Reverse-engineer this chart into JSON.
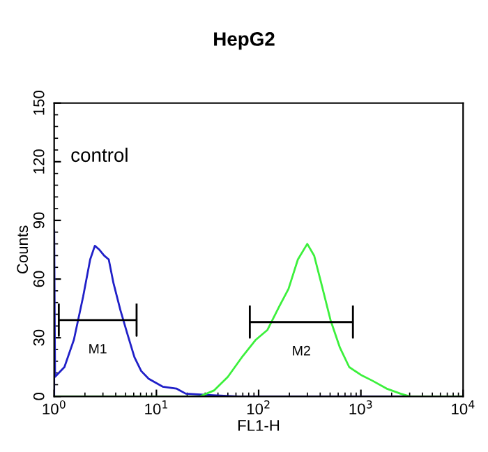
{
  "chart_data": {
    "type": "line",
    "title": "HepG2",
    "xlabel": "FL1-H",
    "ylabel": "Counts",
    "log": "x",
    "xlim": [
      1,
      10000
    ],
    "xticks": [
      {
        "value": 1,
        "label": "10$^{0}$"
      },
      {
        "value": 10,
        "label": "10$^{1}$"
      },
      {
        "value": 100,
        "label": "10$^{2}$"
      },
      {
        "value": 1000,
        "label": "10$^{3}$"
      },
      {
        "value": 10000,
        "label": "10$^{4}$"
      }
    ],
    "ylim": [
      0,
      150
    ],
    "yticks": [
      0,
      30,
      60,
      90,
      120,
      150
    ],
    "grid": false,
    "marker": "none",
    "line_style": "solid",
    "series": [
      {
        "color": "#2020c8",
        "x": [
          1,
          1,
          1.02,
          1.26,
          1.56,
          1.92,
          2.25,
          2.5,
          2.77,
          3.08,
          3.42,
          3.8,
          4.45,
          5.2,
          6.1,
          7.1,
          8.4,
          11.5,
          15.7,
          19.4,
          33,
          63,
          10000
        ],
        "values": [
          0,
          85,
          10,
          15,
          29,
          51,
          70,
          77,
          75,
          72,
          70,
          58,
          44,
          32,
          20,
          13,
          9,
          5,
          4,
          1.4,
          0.7,
          0,
          0
        ]
      },
      {
        "color": "#3cf03c",
        "x": [
          1,
          26.6,
          36.5,
          50,
          68.5,
          94,
          122,
          159,
          196,
          242,
          299,
          349,
          409,
          505,
          623,
          769,
          1000,
          1300,
          1783,
          2443,
          3015,
          10000
        ],
        "values": [
          0,
          0,
          3,
          10,
          20,
          29,
          34,
          46,
          55,
          70,
          78,
          72,
          58,
          39,
          25,
          15,
          11,
          8,
          4,
          1.4,
          0,
          0
        ]
      },
      {
        "name": "M1",
        "color": "#000000",
        "x": [
          1.11,
          1.11,
          1.11,
          6.4,
          6.4,
          6.4
        ],
        "values": [
          47,
          31,
          39,
          39,
          31,
          47
        ]
      },
      {
        "name": "M2",
        "color": "#000000",
        "x": [
          82,
          82,
          82,
          836,
          836,
          836
        ],
        "values": [
          46,
          30,
          38,
          38,
          30,
          46
        ]
      }
    ],
    "annotations": [
      "control"
    ]
  }
}
